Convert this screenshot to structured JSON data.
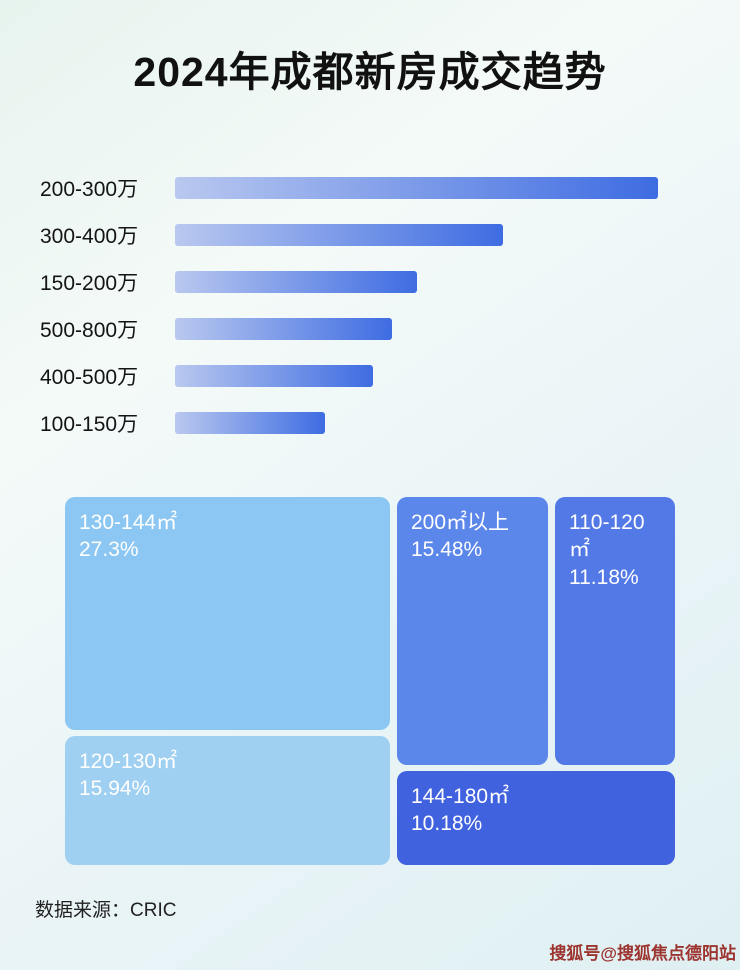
{
  "title": "2024年成都新房成交趋势",
  "chart_data": [
    {
      "type": "bar",
      "orientation": "horizontal",
      "title": "新房成交价格段分布（无数值标注，长度为相对比例）",
      "categories": [
        "200-300万",
        "300-400万",
        "150-200万",
        "500-800万",
        "400-500万",
        "100-150万"
      ],
      "relative_lengths_pct": [
        100,
        68,
        50,
        45,
        41,
        31
      ],
      "bar_gradient": [
        "#b9c8ef",
        "#3e6ce2"
      ]
    },
    {
      "type": "treemap",
      "title": "新房成交面积段占比",
      "items": [
        {
          "label": "130-144㎡",
          "value": "27.3%",
          "color": "#8bc7f2"
        },
        {
          "label": "120-130㎡",
          "value": "15.94%",
          "color": "#9fcff1"
        },
        {
          "label": "200㎡以上",
          "value": "15.48%",
          "color": "#5b86ea"
        },
        {
          "label": "110-120㎡",
          "value": "11.18%",
          "color": "#5379e6"
        },
        {
          "label": "144-180㎡",
          "value": "10.18%",
          "color": "#4062de"
        }
      ]
    }
  ],
  "footer": {
    "source_label": "数据来源：CRIC"
  },
  "watermark": {
    "text": "搜狐号@搜狐焦点德阳站",
    "color": "#9c3430"
  }
}
